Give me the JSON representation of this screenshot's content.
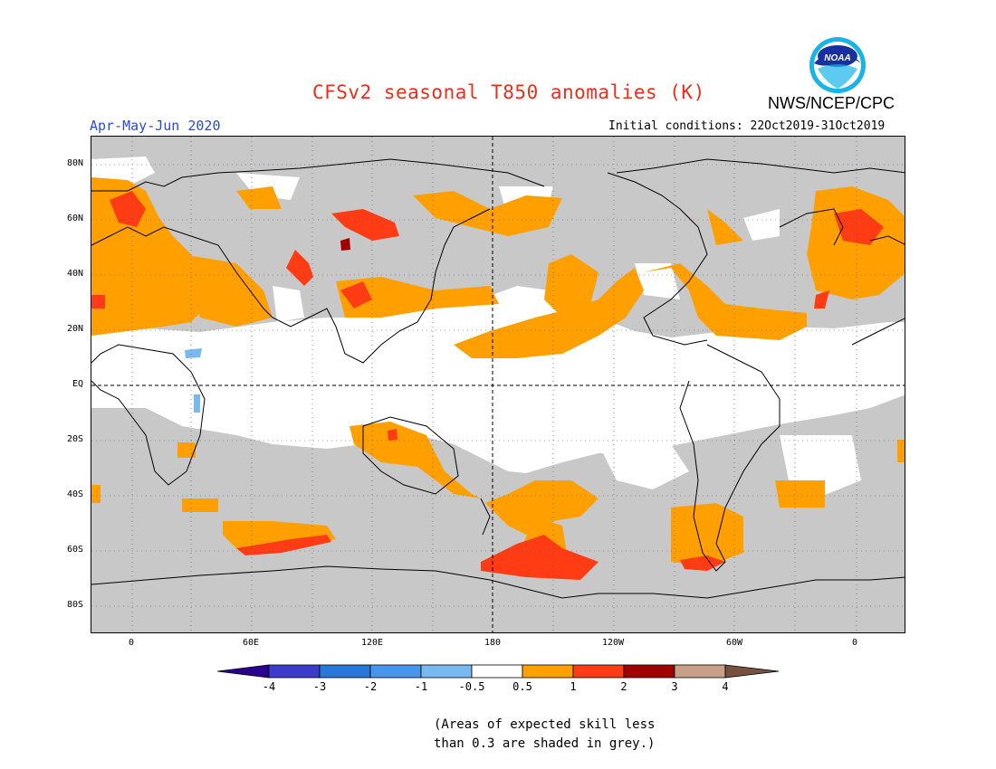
{
  "header": {
    "title": "CFSv2 seasonal T850 anomalies (K)",
    "agency": "NWS/NCEP/CPC",
    "season": "Apr-May-Jun 2020",
    "initial_conditions": "Initial conditions: 22Oct2019-31Oct2019",
    "logo_text": "NOAA"
  },
  "map": {
    "lat_labels": [
      "80N",
      "60N",
      "40N",
      "20N",
      "EQ",
      "20S",
      "40S",
      "60S",
      "80S"
    ],
    "lon_labels": [
      "0",
      "60E",
      "120E",
      "180",
      "120W",
      "60W",
      "0"
    ],
    "colors": {
      "grey": "#c8c8c8",
      "orange": "#ffa000",
      "red_orange": "#ff3c14",
      "dark_red": "#a00000",
      "light_blue": "#78b9f0"
    }
  },
  "legend": {
    "labels": [
      "-4",
      "-3",
      "-2",
      "-1",
      "-0.5",
      "0.5",
      "1",
      "2",
      "3",
      "4"
    ],
    "colors": [
      "#2a0090",
      "#3c3ccc",
      "#2878dc",
      "#4696f0",
      "#78b9f0",
      "#ffffff",
      "#ffa000",
      "#ff3c14",
      "#a00000",
      "#c8a088",
      "#785040"
    ]
  },
  "note": {
    "line1": "(Areas of expected skill less",
    "line2": "than 0.3 are shaded in grey.)"
  }
}
